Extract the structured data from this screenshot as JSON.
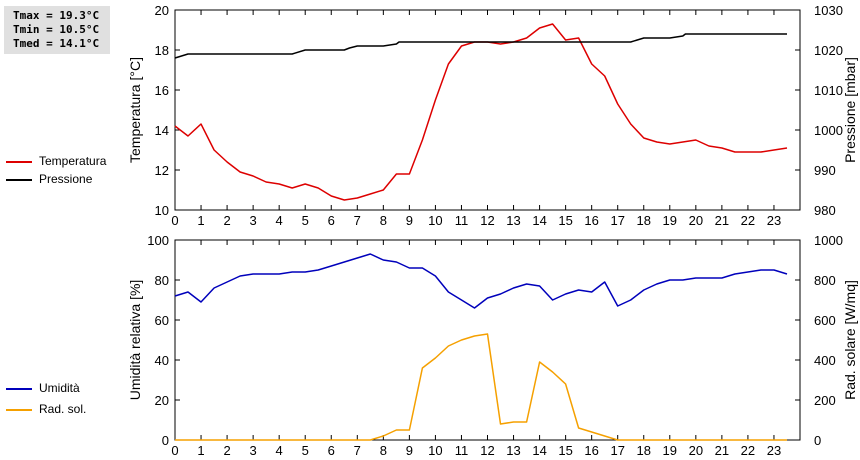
{
  "stats": {
    "tmax": "Tmax = 19.3°C",
    "tmin": "Tmin = 10.5°C",
    "tmed": "Tmed = 14.1°C"
  },
  "legend": {
    "temperatura": "Temperatura",
    "pressione": "Pressione",
    "umidita": "Umidità",
    "radsol": "Rad. sol."
  },
  "colors": {
    "temperatura": "#dd0000",
    "pressione": "#000000",
    "umidita": "#0000bb",
    "radsol": "#f5a000"
  },
  "chart_data": [
    {
      "type": "line",
      "xlim": [
        0,
        24
      ],
      "xticks": [
        0,
        1,
        2,
        3,
        4,
        5,
        6,
        7,
        8,
        9,
        10,
        11,
        12,
        13,
        14,
        15,
        16,
        17,
        18,
        19,
        20,
        21,
        22,
        23
      ],
      "ylabel": "Temperatura [°C]",
      "ylim": [
        10,
        20
      ],
      "yticks": [
        10,
        12,
        14,
        16,
        18,
        20
      ],
      "y2label": "Pressione [mbar]",
      "y2lim": [
        980,
        1030
      ],
      "y2ticks": [
        980,
        990,
        1000,
        1010,
        1020,
        1030
      ],
      "grid": false,
      "series": [
        {
          "name": "Temperatura",
          "axis": "left",
          "x": [
            0,
            0.5,
            1,
            1.5,
            2,
            2.5,
            3,
            3.5,
            4,
            4.5,
            5,
            5.5,
            6,
            6.5,
            7,
            7.5,
            8,
            8.5,
            9,
            9.5,
            10,
            10.5,
            11,
            11.5,
            12,
            12.5,
            13,
            13.5,
            14,
            14.5,
            15,
            15.5,
            16,
            16.5,
            17,
            17.5,
            18,
            18.5,
            19,
            19.5,
            20,
            20.5,
            21,
            21.5,
            22,
            22.5,
            23,
            23.5
          ],
          "values": [
            14.2,
            13.7,
            14.3,
            13.0,
            12.4,
            11.9,
            11.7,
            11.4,
            11.3,
            11.1,
            11.3,
            11.1,
            10.7,
            10.5,
            10.6,
            10.8,
            11.0,
            11.8,
            11.8,
            13.5,
            15.5,
            17.3,
            18.2,
            18.4,
            18.4,
            18.3,
            18.4,
            18.6,
            19.1,
            19.3,
            18.5,
            18.6,
            17.3,
            16.7,
            15.3,
            14.3,
            13.6,
            13.4,
            13.3,
            13.4,
            13.5,
            13.2,
            13.1,
            12.9,
            12.9,
            12.9,
            13.0,
            13.1
          ]
        },
        {
          "name": "Pressione",
          "axis": "right",
          "x": [
            0,
            0.25,
            0.5,
            1,
            1.5,
            2,
            2.5,
            3,
            3.5,
            4,
            4.5,
            4.6,
            5,
            5.5,
            6,
            6.5,
            6.7,
            7,
            7.5,
            8,
            8.5,
            8.6,
            9,
            9.5,
            10,
            10.5,
            11,
            11.5,
            12,
            12.5,
            13,
            13.5,
            14,
            14.5,
            15,
            15.5,
            16,
            16.5,
            17,
            17.5,
            17.6,
            18,
            18.5,
            19,
            19.5,
            19.6,
            20,
            20.5,
            21,
            21.5,
            22,
            22.5,
            23,
            23.5
          ],
          "values": [
            1018,
            1018.5,
            1019,
            1019,
            1019,
            1019,
            1019,
            1019,
            1019,
            1019,
            1019,
            1019.2,
            1020,
            1020,
            1020,
            1020,
            1020.5,
            1021,
            1021,
            1021,
            1021.5,
            1022,
            1022,
            1022,
            1022,
            1022,
            1022,
            1022,
            1022,
            1022,
            1022,
            1022,
            1022,
            1022,
            1022,
            1022,
            1022,
            1022,
            1022,
            1022,
            1022.2,
            1023,
            1023,
            1023,
            1023.5,
            1024,
            1024,
            1024,
            1024,
            1024,
            1024,
            1024,
            1024,
            1024
          ]
        }
      ]
    },
    {
      "type": "line",
      "xlim": [
        0,
        24
      ],
      "xticks": [
        0,
        1,
        2,
        3,
        4,
        5,
        6,
        7,
        8,
        9,
        10,
        11,
        12,
        13,
        14,
        15,
        16,
        17,
        18,
        19,
        20,
        21,
        22,
        23
      ],
      "ylabel": "Umidità relativa [%]",
      "ylim": [
        0,
        100
      ],
      "yticks": [
        0,
        20,
        40,
        60,
        80,
        100
      ],
      "y2label": "Rad. solare [W/mq]",
      "y2lim": [
        0,
        1000
      ],
      "y2ticks": [
        0,
        200,
        400,
        600,
        800,
        1000
      ],
      "grid": false,
      "series": [
        {
          "name": "Umidità",
          "axis": "left",
          "x": [
            0,
            0.5,
            1,
            1.5,
            2,
            2.5,
            3,
            3.5,
            4,
            4.5,
            5,
            5.5,
            6,
            6.5,
            7,
            7.5,
            8,
            8.5,
            9,
            9.5,
            10,
            10.5,
            11,
            11.5,
            12,
            12.5,
            13,
            13.5,
            14,
            14.5,
            15,
            15.5,
            16,
            16.5,
            17,
            17.5,
            18,
            18.5,
            19,
            19.5,
            20,
            20.5,
            21,
            21.5,
            22,
            22.5,
            23,
            23.5
          ],
          "values": [
            72,
            74,
            69,
            76,
            79,
            82,
            83,
            83,
            83,
            84,
            84,
            85,
            87,
            89,
            91,
            93,
            90,
            89,
            86,
            86,
            82,
            74,
            70,
            66,
            71,
            73,
            76,
            78,
            77,
            70,
            73,
            75,
            74,
            79,
            67,
            70,
            75,
            78,
            80,
            80,
            81,
            81,
            81,
            83,
            84,
            85,
            85,
            83
          ]
        },
        {
          "name": "Rad. sol.",
          "axis": "right",
          "x": [
            0,
            0.5,
            1,
            1.5,
            2,
            2.5,
            3,
            3.5,
            4,
            4.5,
            5,
            5.5,
            6,
            6.5,
            7,
            7.5,
            8,
            8.5,
            9,
            9.5,
            10,
            10.5,
            11,
            11.5,
            12,
            12.5,
            13,
            13.5,
            14,
            14.5,
            15,
            15.5,
            16,
            16.5,
            17,
            17.5,
            18,
            18.5,
            19,
            19.5,
            20,
            20.5,
            21,
            21.5,
            22,
            22.5,
            23,
            23.5
          ],
          "values": [
            0,
            0,
            0,
            0,
            0,
            0,
            0,
            0,
            0,
            0,
            0,
            0,
            0,
            0,
            0,
            0,
            20,
            50,
            50,
            360,
            410,
            470,
            500,
            520,
            530,
            80,
            90,
            90,
            390,
            340,
            280,
            60,
            40,
            20,
            0,
            0,
            0,
            0,
            0,
            0,
            0,
            0,
            0,
            0,
            0,
            0,
            0,
            0
          ]
        }
      ]
    }
  ]
}
